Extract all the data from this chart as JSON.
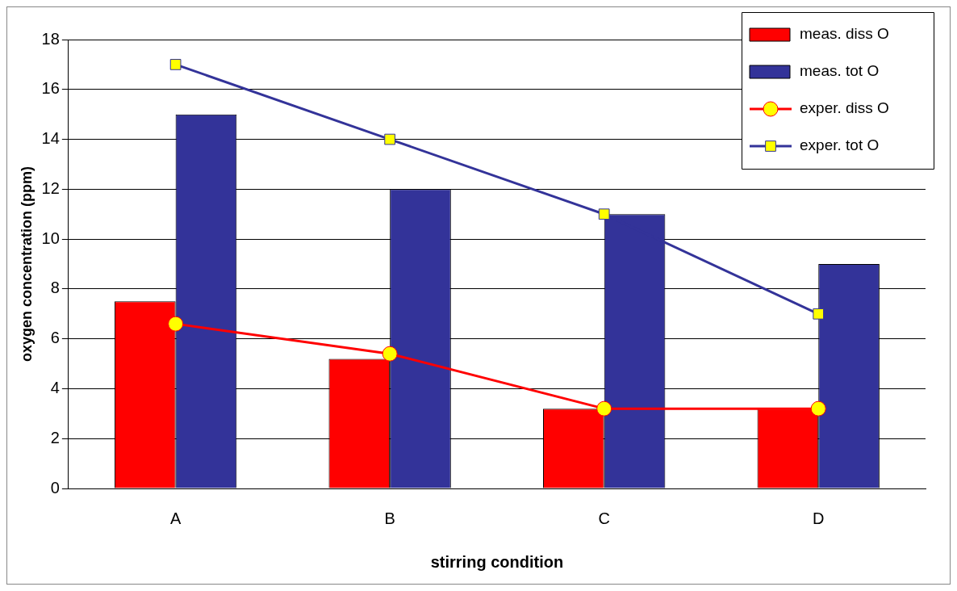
{
  "chart_data": {
    "type": "bar",
    "xlabel": "stirring condition",
    "ylabel": "oxygen concentration (ppm)",
    "categories": [
      "A",
      "B",
      "C",
      "D"
    ],
    "series": [
      {
        "name": "meas. diss O",
        "color": "#ff0000",
        "values": [
          7.5,
          5.2,
          3.2,
          3.2
        ]
      },
      {
        "name": "meas. tot O",
        "color": "#333399",
        "values": [
          15,
          12,
          11,
          9
        ]
      },
      {
        "name": "exper. diss O",
        "type": "line",
        "color": "#ff0000",
        "marker": "circle",
        "values": [
          6.6,
          5.4,
          3.2,
          3.2
        ]
      },
      {
        "name": "exper. tot O",
        "type": "line",
        "color": "#333399",
        "marker": "square",
        "values": [
          17,
          14,
          11,
          7
        ]
      }
    ],
    "ylim": [
      0,
      18
    ],
    "yticks": [
      0,
      2,
      4,
      6,
      8,
      10,
      12,
      14,
      16,
      18
    ],
    "grid": "y",
    "legend": "top right"
  }
}
